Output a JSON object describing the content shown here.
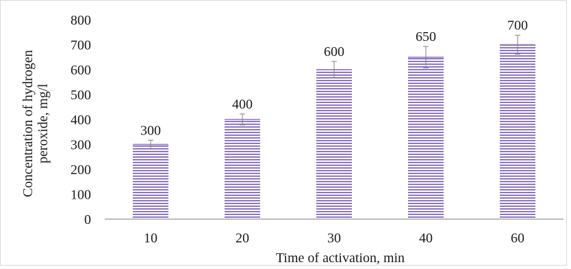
{
  "chart_data": {
    "type": "bar",
    "title": "",
    "xlabel": "Time of activation, min",
    "ylabel_lines": [
      "Concentration of hydrogen",
      "peroxide, mg/l"
    ],
    "categories": [
      "10",
      "20",
      "30",
      "40",
      "60"
    ],
    "values": [
      300,
      400,
      600,
      650,
      700
    ],
    "error_bars": [
      17,
      22,
      33,
      43,
      38
    ],
    "data_labels": [
      "300",
      "400",
      "600",
      "650",
      "700"
    ],
    "ylim": [
      0,
      800
    ],
    "yticks": [
      0,
      100,
      200,
      300,
      400,
      500,
      600,
      700,
      800
    ],
    "grid": false,
    "legend": "none",
    "bar_color": "#8e74c0",
    "bar_stripe_color": "#ffffff",
    "axis_color": "#a6a6a6",
    "error_bar_color": "#7f7f7f"
  }
}
